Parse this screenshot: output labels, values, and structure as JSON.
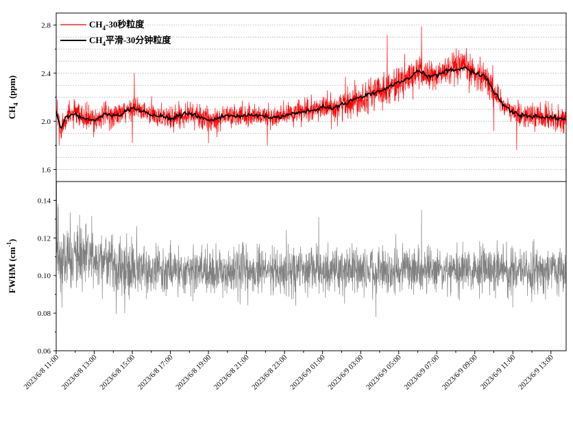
{
  "chart_data": [
    {
      "type": "line",
      "ylabel_main": "CH",
      "ylabel_sub": "4",
      "ylabel_unit": "(ppm)",
      "ylim": [
        1.5,
        2.9
      ],
      "yticks": [
        "1.6",
        "2.0",
        "2.4",
        "2.8"
      ],
      "ytick_values": [
        1.6,
        2.0,
        2.4,
        2.8
      ],
      "grid": true,
      "legend_position": "top-left",
      "legend": [
        {
          "name_main": "CH",
          "name_sub": "4",
          "name_rest": "-30秒粒度",
          "color": "#ff0000"
        },
        {
          "name_main": "CH",
          "name_sub": "4",
          "name_rest": "平滑-30分钟粒度",
          "color": "#000000"
        }
      ],
      "x_hours_range": [
        0,
        26.8
      ],
      "series": [
        {
          "color": "#ff0000",
          "kind": "noisy_30s",
          "noise_amplitude": 0.06,
          "spikes": [
            {
              "x_hours": 0.15,
              "y": 1.8
            },
            {
              "x_hours": 0.05,
              "y": 2.18
            },
            {
              "x_hours": 4.1,
              "y": 2.4
            },
            {
              "x_hours": 4.0,
              "y": 1.82
            },
            {
              "x_hours": 8.0,
              "y": 1.82
            },
            {
              "x_hours": 11.1,
              "y": 1.8
            },
            {
              "x_hours": 17.4,
              "y": 2.72
            },
            {
              "x_hours": 19.2,
              "y": 2.79
            },
            {
              "x_hours": 24.2,
              "y": 1.76
            },
            {
              "x_hours": 23.0,
              "y": 1.92
            }
          ]
        },
        {
          "color": "#000000",
          "kind": "smoothed_30min",
          "x_hours": [
            0,
            0.25,
            0.5,
            1,
            1.5,
            2,
            2.5,
            3,
            3.5,
            4,
            4.5,
            5,
            5.5,
            6,
            6.5,
            7,
            7.5,
            8,
            8.5,
            9,
            9.5,
            10,
            10.5,
            11,
            11.5,
            12,
            12.5,
            13,
            13.5,
            14,
            14.5,
            15,
            15.5,
            16,
            16.5,
            17,
            17.5,
            18,
            18.5,
            19,
            19.5,
            20,
            20.5,
            21,
            21.5,
            22,
            22.5,
            23,
            23.5,
            24,
            24.5,
            25,
            25.5,
            26,
            26.5,
            26.8
          ],
          "y": [
            2.08,
            1.93,
            2.04,
            2.06,
            2.02,
            2.01,
            2.05,
            2.05,
            2.06,
            2.12,
            2.08,
            2.05,
            2.05,
            2.02,
            2.05,
            2.07,
            2.04,
            2.01,
            2.03,
            2.05,
            2.04,
            2.05,
            2.05,
            2.04,
            2.03,
            2.05,
            2.07,
            2.08,
            2.09,
            2.12,
            2.11,
            2.14,
            2.17,
            2.2,
            2.23,
            2.25,
            2.29,
            2.32,
            2.35,
            2.42,
            2.38,
            2.38,
            2.42,
            2.43,
            2.45,
            2.4,
            2.38,
            2.25,
            2.14,
            2.07,
            2.05,
            2.04,
            2.04,
            2.03,
            2.02,
            2.03
          ]
        }
      ]
    },
    {
      "type": "line",
      "ylabel_main": "FWHM (cm",
      "ylabel_sup": "-1",
      "ylabel_end": ")",
      "ylim": [
        0.06,
        0.15
      ],
      "yticks": [
        "0.06",
        "0.08",
        "0.10",
        "0.12",
        "0.14"
      ],
      "ytick_values": [
        0.06,
        0.08,
        0.1,
        0.12,
        0.14
      ],
      "grid": false,
      "x_hours_range": [
        0,
        26.8
      ],
      "xticks": [
        "2023/6/8 11:00",
        "2023/6/8 13:00",
        "2023/6/8 15:00",
        "2023/6/8 17:00",
        "2023/6/8 19:00",
        "2023/6/8 21:00",
        "2023/6/8 23:00",
        "2023/6/9 01:00",
        "2023/6/9 03:00",
        "2023/6/9 05:00",
        "2023/6/9 07:00",
        "2023/6/9 09:00",
        "2023/6/9 11:00",
        "2023/6/9 13:00"
      ],
      "xtick_hours": [
        0,
        2,
        4,
        6,
        8,
        10,
        12,
        14,
        16,
        18,
        20,
        22,
        24,
        26
      ],
      "series": [
        {
          "color": "#808080",
          "kind": "noisy_30s",
          "baseline": 0.103,
          "noise_amplitude": 0.008,
          "spikes": [
            {
              "x_hours": 0.02,
              "y": 0.15
            },
            {
              "x_hours": 0.1,
              "y": 0.138
            },
            {
              "x_hours": 0.3,
              "y": 0.083
            },
            {
              "x_hours": 3.6,
              "y": 0.08
            },
            {
              "x_hours": 13.8,
              "y": 0.131
            },
            {
              "x_hours": 16.8,
              "y": 0.078
            },
            {
              "x_hours": 19.2,
              "y": 0.135
            },
            {
              "x_hours": 24.0,
              "y": 0.083
            },
            {
              "x_hours": 25.0,
              "y": 0.086
            }
          ]
        }
      ]
    }
  ]
}
